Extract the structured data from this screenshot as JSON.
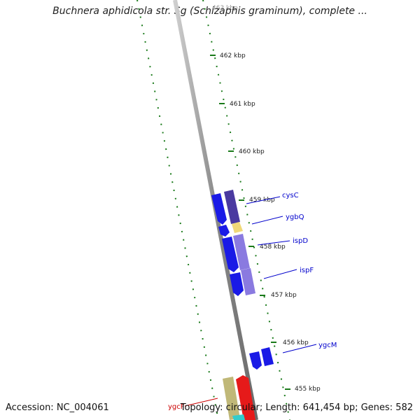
{
  "header": {
    "title": "Buchnera aphidicola str. Sg (Schizaphis graminum), complete ..."
  },
  "footer": {
    "accession": "Accession: NC_004061",
    "summary": "Topology: circular; Length: 641,454 bp; Genes: 582"
  },
  "ticks": [
    "463 kbp",
    "462 kbp",
    "461 kbp",
    "460 kbp",
    "459 kbp",
    "458 kbp",
    "457 kbp",
    "456 kbp",
    "455 kbp"
  ],
  "genes": [
    {
      "name": "cysC",
      "color": "#0000cc"
    },
    {
      "name": "ygbQ",
      "color": "#0000cc"
    },
    {
      "name": "ispD",
      "color": "#0000cc"
    },
    {
      "name": "ispF",
      "color": "#0000cc"
    },
    {
      "name": "ygcM",
      "color": "#0000cc"
    },
    {
      "name": "ygcF",
      "color": "#cc0000"
    }
  ],
  "colors": {
    "forward_cds": "#1a1ae6",
    "reverse_cds": "#e61a1a",
    "backbone": "#888888",
    "ticks": "#1a7a1a",
    "feature_purple": "#4a3aa0",
    "feature_yellow": "#f0d878",
    "feature_lavender": "#8a7ae0",
    "feature_olive": "#c0b878",
    "feature_cyan": "#33cccc"
  }
}
